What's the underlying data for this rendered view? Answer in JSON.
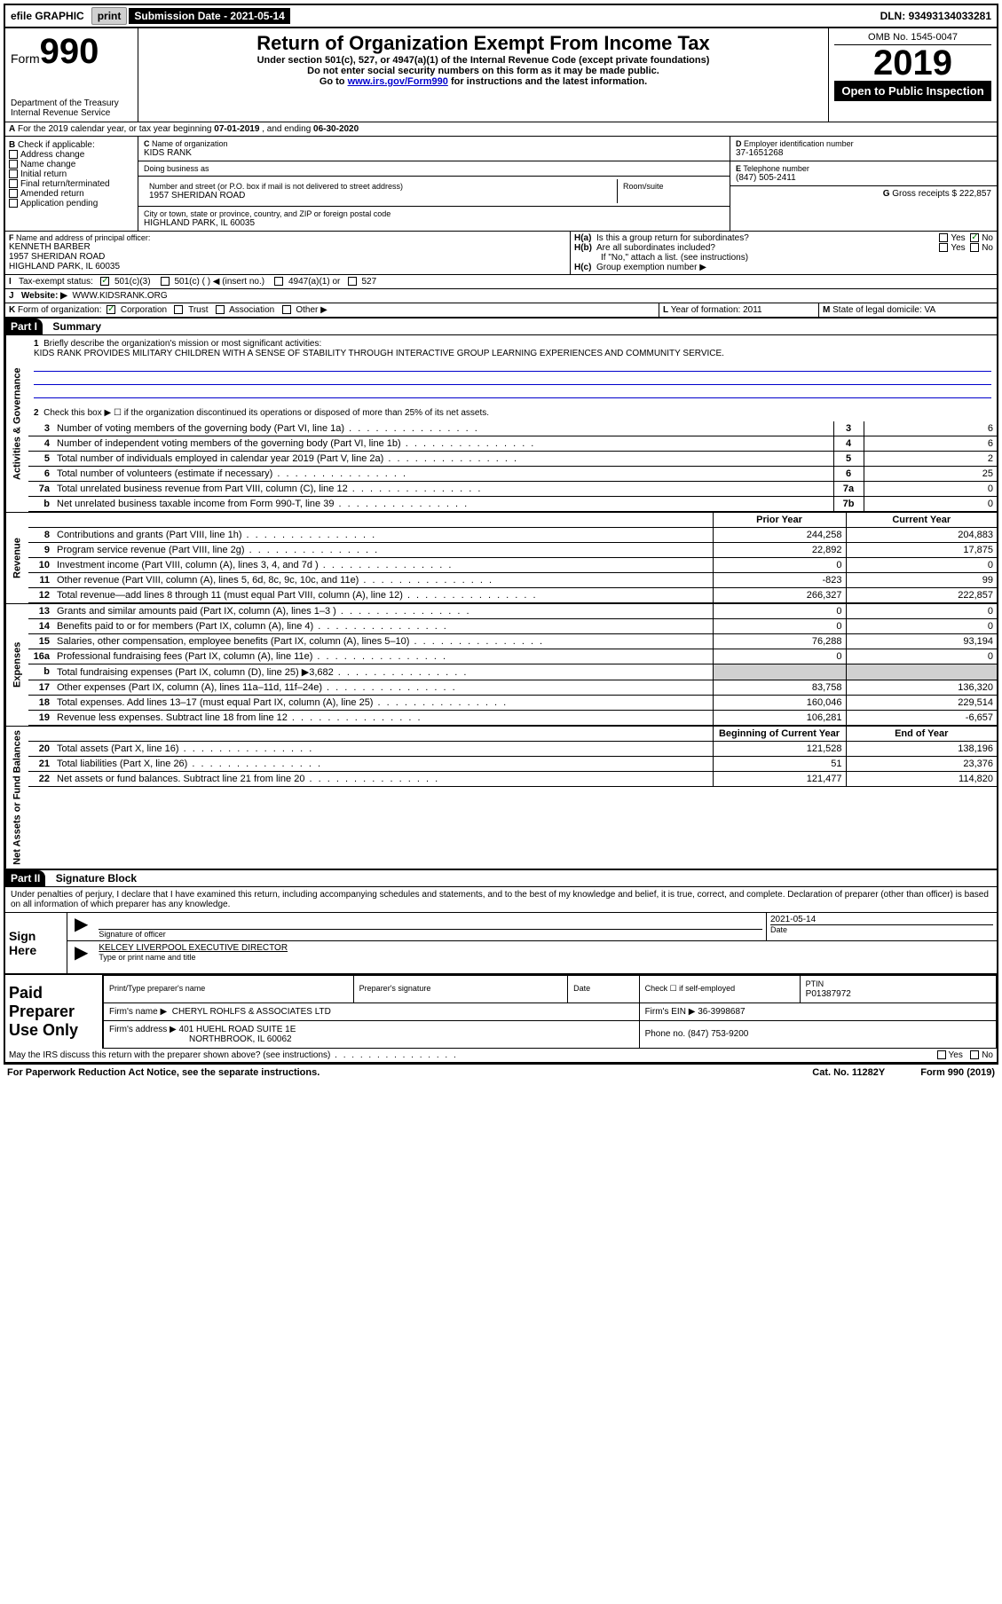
{
  "top": {
    "efile": "efile",
    "graphic": "GRAPHIC",
    "print": "print",
    "submission_label": "Submission Date - ",
    "submission_date": "2021-05-14",
    "dln_label": "DLN: ",
    "dln": "93493134033281"
  },
  "header": {
    "form_prefix": "Form",
    "form_number": "990",
    "dept": "Department of the Treasury",
    "irs": "Internal Revenue Service",
    "title": "Return of Organization Exempt From Income Tax",
    "subtitle": "Under section 501(c), 527, or 4947(a)(1) of the Internal Revenue Code (except private foundations)",
    "note1": "Do not enter social security numbers on this form as it may be made public.",
    "note2_pre": "Go to ",
    "note2_link": "www.irs.gov/Form990",
    "note2_post": " for instructions and the latest information.",
    "omb": "OMB No. 1545-0047",
    "year": "2019",
    "open": "Open to Public Inspection"
  },
  "period": {
    "label_a": "For the 2019 calendar year, or tax year beginning ",
    "begin": "07-01-2019",
    "mid": " , and ending ",
    "end": "06-30-2020"
  },
  "box_b": {
    "label": "Check if applicable:",
    "addr": "Address change",
    "name": "Name change",
    "init": "Initial return",
    "final": "Final return/terminated",
    "amend": "Amended return",
    "app": "Application pending"
  },
  "box_c": {
    "label": "Name of organization",
    "name": "KIDS RANK",
    "dba_label": "Doing business as",
    "dba": "",
    "addr_label": "Number and street (or P.O. box if mail is not delivered to street address)",
    "room_label": "Room/suite",
    "addr": "1957 SHERIDAN ROAD",
    "city_label": "City or town, state or province, country, and ZIP or foreign postal code",
    "city": "HIGHLAND PARK, IL  60035"
  },
  "box_d": {
    "label": "Employer identification number",
    "val": "37-1651268"
  },
  "box_e": {
    "label": "Telephone number",
    "val": "(847) 505-2411"
  },
  "box_g": {
    "label": "Gross receipts $",
    "val": "222,857"
  },
  "box_f": {
    "label": "Name and address of principal officer:",
    "name": "KENNETH BARBER",
    "addr1": "1957 SHERIDAN ROAD",
    "addr2": "HIGHLAND PARK, IL  60035"
  },
  "box_h": {
    "ha": "Is this a group return for subordinates?",
    "hb": "Are all subordinates included?",
    "hb_note": "If \"No,\" attach a list. (see instructions)",
    "hc": "Group exemption number ▶",
    "yes": "Yes",
    "no": "No",
    "ha_answer": "No"
  },
  "box_i": {
    "label": "Tax-exempt status:",
    "opt1": "501(c)(3)",
    "opt2": "501(c) (  ) ◀ (insert no.)",
    "opt3": "4947(a)(1) or",
    "opt4": "527"
  },
  "box_j": {
    "label": "Website: ▶",
    "val": "WWW.KIDSRANK.ORG"
  },
  "box_k": {
    "label": "Form of organization:",
    "corp": "Corporation",
    "trust": "Trust",
    "assoc": "Association",
    "other": "Other ▶"
  },
  "box_l": {
    "label": "Year of formation:",
    "val": "2011"
  },
  "box_m": {
    "label": "State of legal domicile:",
    "val": "VA"
  },
  "part1": {
    "header": "Part I",
    "title": "Summary",
    "line1_label": "Briefly describe the organization's mission or most significant activities:",
    "line1_text": "KIDS RANK PROVIDES MILITARY CHILDREN WITH A SENSE OF STABILITY THROUGH INTERACTIVE GROUP LEARNING EXPERIENCES AND COMMUNITY SERVICE.",
    "line2": "Check this box ▶ ☐ if the organization discontinued its operations or disposed of more than 25% of its net assets.",
    "vert_ag": "Activities & Governance",
    "vert_rev": "Revenue",
    "vert_exp": "Expenses",
    "vert_na": "Net Assets or Fund Balances",
    "hdr_prior": "Prior Year",
    "hdr_curr": "Current Year",
    "hdr_begin": "Beginning of Current Year",
    "hdr_end": "End of Year",
    "lines_gov": [
      {
        "n": "3",
        "t": "Number of voting members of the governing body (Part VI, line 1a)",
        "box": "3",
        "v": "6"
      },
      {
        "n": "4",
        "t": "Number of independent voting members of the governing body (Part VI, line 1b)",
        "box": "4",
        "v": "6"
      },
      {
        "n": "5",
        "t": "Total number of individuals employed in calendar year 2019 (Part V, line 2a)",
        "box": "5",
        "v": "2"
      },
      {
        "n": "6",
        "t": "Total number of volunteers (estimate if necessary)",
        "box": "6",
        "v": "25"
      },
      {
        "n": "7a",
        "t": "Total unrelated business revenue from Part VIII, column (C), line 12",
        "box": "7a",
        "v": "0"
      },
      {
        "n": "b",
        "t": "Net unrelated business taxable income from Form 990-T, line 39",
        "box": "7b",
        "v": "0"
      }
    ],
    "lines_rev": [
      {
        "n": "8",
        "t": "Contributions and grants (Part VIII, line 1h)",
        "p": "244,258",
        "c": "204,883"
      },
      {
        "n": "9",
        "t": "Program service revenue (Part VIII, line 2g)",
        "p": "22,892",
        "c": "17,875"
      },
      {
        "n": "10",
        "t": "Investment income (Part VIII, column (A), lines 3, 4, and 7d )",
        "p": "0",
        "c": "0"
      },
      {
        "n": "11",
        "t": "Other revenue (Part VIII, column (A), lines 5, 6d, 8c, 9c, 10c, and 11e)",
        "p": "-823",
        "c": "99"
      },
      {
        "n": "12",
        "t": "Total revenue—add lines 8 through 11 (must equal Part VIII, column (A), line 12)",
        "p": "266,327",
        "c": "222,857"
      }
    ],
    "lines_exp": [
      {
        "n": "13",
        "t": "Grants and similar amounts paid (Part IX, column (A), lines 1–3 )",
        "p": "0",
        "c": "0"
      },
      {
        "n": "14",
        "t": "Benefits paid to or for members (Part IX, column (A), line 4)",
        "p": "0",
        "c": "0"
      },
      {
        "n": "15",
        "t": "Salaries, other compensation, employee benefits (Part IX, column (A), lines 5–10)",
        "p": "76,288",
        "c": "93,194"
      },
      {
        "n": "16a",
        "t": "Professional fundraising fees (Part IX, column (A), line 11e)",
        "p": "0",
        "c": "0"
      },
      {
        "n": "b",
        "t": "Total fundraising expenses (Part IX, column (D), line 25) ▶3,682",
        "p": "",
        "c": "",
        "shade": true
      },
      {
        "n": "17",
        "t": "Other expenses (Part IX, column (A), lines 11a–11d, 11f–24e)",
        "p": "83,758",
        "c": "136,320"
      },
      {
        "n": "18",
        "t": "Total expenses. Add lines 13–17 (must equal Part IX, column (A), line 25)",
        "p": "160,046",
        "c": "229,514"
      },
      {
        "n": "19",
        "t": "Revenue less expenses. Subtract line 18 from line 12",
        "p": "106,281",
        "c": "-6,657"
      }
    ],
    "lines_na": [
      {
        "n": "20",
        "t": "Total assets (Part X, line 16)",
        "p": "121,528",
        "c": "138,196"
      },
      {
        "n": "21",
        "t": "Total liabilities (Part X, line 26)",
        "p": "51",
        "c": "23,376"
      },
      {
        "n": "22",
        "t": "Net assets or fund balances. Subtract line 21 from line 20",
        "p": "121,477",
        "c": "114,820"
      }
    ]
  },
  "part2": {
    "header": "Part II",
    "title": "Signature Block",
    "perjury": "Under penalties of perjury, I declare that I have examined this return, including accompanying schedules and statements, and to the best of my knowledge and belief, it is true, correct, and complete. Declaration of preparer (other than officer) is based on all information of which preparer has any knowledge.",
    "sign_here": "Sign Here",
    "sig_officer": "Signature of officer",
    "sig_date": "Date",
    "sig_date_val": "2021-05-14",
    "officer_name": "KELCEY LIVERPOOL  EXECUTIVE DIRECTOR",
    "officer_label": "Type or print name and title",
    "paid": "Paid Preparer Use Only",
    "prep_name_label": "Print/Type preparer's name",
    "prep_sig_label": "Preparer's signature",
    "prep_date_label": "Date",
    "prep_check": "Check ☐ if self-employed",
    "ptin_label": "PTIN",
    "ptin": "P01387972",
    "firm_name_label": "Firm's name   ▶",
    "firm_name": "CHERYL ROHLFS & ASSOCIATES LTD",
    "firm_ein_label": "Firm's EIN ▶",
    "firm_ein": "36-3998687",
    "firm_addr_label": "Firm's address ▶",
    "firm_addr1": "401 HUEHL ROAD SUITE 1E",
    "firm_addr2": "NORTHBROOK, IL  60062",
    "phone_label": "Phone no.",
    "phone": "(847) 753-9200",
    "discuss": "May the IRS discuss this return with the preparer shown above? (see instructions)"
  },
  "footer": {
    "pra": "For Paperwork Reduction Act Notice, see the separate instructions.",
    "cat": "Cat. No. 11282Y",
    "form": "Form 990 (2019)"
  },
  "colors": {
    "border": "#000000",
    "shade": "#d0d0d0",
    "link": "#0000cc",
    "check": "#008000"
  }
}
